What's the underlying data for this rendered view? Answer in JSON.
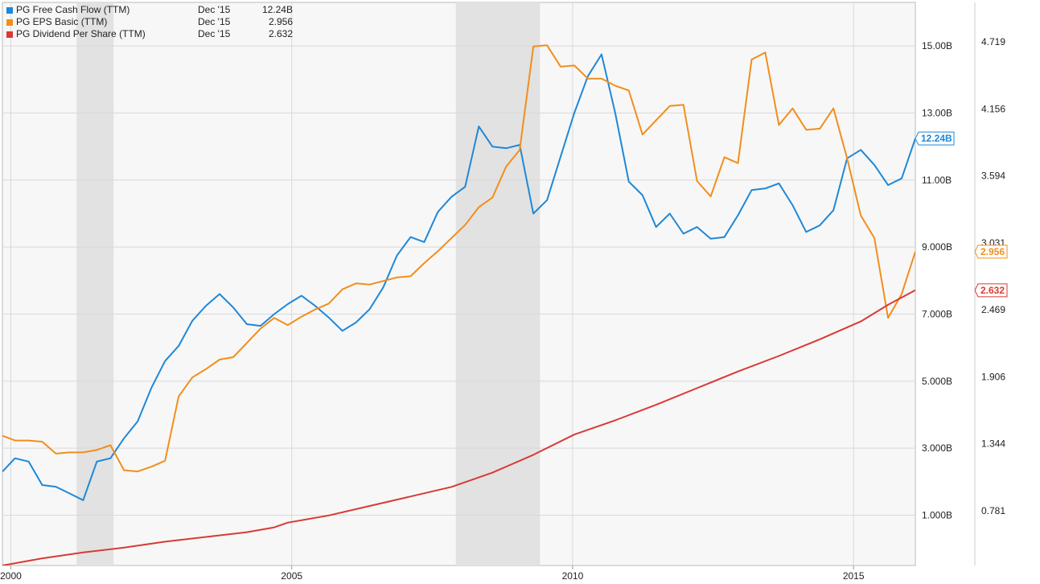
{
  "chart_data": {
    "type": "line",
    "legend": {
      "placement": "top-left",
      "rows": [
        {
          "series": "fcf",
          "name": "PG Free Cash Flow (TTM)",
          "date": "Dec '15",
          "value": "12.24B"
        },
        {
          "series": "eps",
          "name": "PG EPS Basic (TTM)",
          "date": "Dec '15",
          "value": "2.956"
        },
        {
          "series": "dps",
          "name": "PG Dividend Per Share (TTM)",
          "date": "Dec '15",
          "value": "2.632"
        }
      ]
    },
    "x_axis": {
      "range": [
        1999.85,
        2016.1
      ],
      "ticks": [
        {
          "value": 2000,
          "label": "2000"
        },
        {
          "value": 2005,
          "label": "2005"
        },
        {
          "value": 2010,
          "label": "2010"
        },
        {
          "value": 2015,
          "label": "2015"
        }
      ]
    },
    "left_axis": {
      "range": [
        -0.5,
        16.3
      ],
      "ticks": [
        {
          "value": 1,
          "label": "1.000B"
        },
        {
          "value": 3,
          "label": "3.000B"
        },
        {
          "value": 5,
          "label": "5.000B"
        },
        {
          "value": 7,
          "label": "7.000B"
        },
        {
          "value": 9,
          "label": "9.000B"
        },
        {
          "value": 11,
          "label": "11.00B"
        },
        {
          "value": 13,
          "label": "13.00B"
        },
        {
          "value": 15,
          "label": "15.00B"
        }
      ]
    },
    "right_axis": {
      "range": [
        0.32,
        5.05
      ],
      "ticks": [
        {
          "value": 0.781,
          "label": "0.781"
        },
        {
          "value": 1.344,
          "label": "1.344"
        },
        {
          "value": 1.906,
          "label": "1.906"
        },
        {
          "value": 2.469,
          "label": "2.469"
        },
        {
          "value": 3.031,
          "label": "3.031"
        },
        {
          "value": 3.594,
          "label": "3.594"
        },
        {
          "value": 4.156,
          "label": "4.156"
        },
        {
          "value": 4.719,
          "label": "4.719"
        }
      ]
    },
    "grid": true,
    "recession_shading": [
      [
        2001.17,
        2001.83
      ],
      [
        2007.92,
        2009.42
      ]
    ],
    "series": [
      {
        "id": "fcf",
        "name": "PG Free Cash Flow (TTM)",
        "axis": "left",
        "unit": "B",
        "color": "#1e88d8",
        "end_label": "12.24B",
        "points": [
          [
            1999.85,
            2.3
          ],
          [
            2000.08,
            2.7
          ],
          [
            2000.33,
            2.6
          ],
          [
            2000.58,
            1.9
          ],
          [
            2000.83,
            1.85
          ],
          [
            2001.08,
            1.65
          ],
          [
            2001.33,
            1.45
          ],
          [
            2001.58,
            2.6
          ],
          [
            2001.83,
            2.7
          ],
          [
            2002.08,
            3.3
          ],
          [
            2002.33,
            3.8
          ],
          [
            2002.58,
            4.8
          ],
          [
            2002.83,
            5.6
          ],
          [
            2003.08,
            6.05
          ],
          [
            2003.33,
            6.8
          ],
          [
            2003.58,
            7.25
          ],
          [
            2003.83,
            7.6
          ],
          [
            2004.08,
            7.2
          ],
          [
            2004.33,
            6.7
          ],
          [
            2004.58,
            6.65
          ],
          [
            2004.83,
            7.0
          ],
          [
            2005.08,
            7.3
          ],
          [
            2005.33,
            7.55
          ],
          [
            2005.58,
            7.25
          ],
          [
            2005.83,
            6.9
          ],
          [
            2006.08,
            6.5
          ],
          [
            2006.33,
            6.75
          ],
          [
            2006.58,
            7.15
          ],
          [
            2006.83,
            7.8
          ],
          [
            2007.08,
            8.75
          ],
          [
            2007.33,
            9.3
          ],
          [
            2007.58,
            9.15
          ],
          [
            2007.83,
            10.05
          ],
          [
            2008.08,
            10.5
          ],
          [
            2008.33,
            10.8
          ],
          [
            2008.58,
            12.6
          ],
          [
            2008.83,
            12.0
          ],
          [
            2009.08,
            11.95
          ],
          [
            2009.33,
            12.05
          ],
          [
            2009.58,
            10.0
          ],
          [
            2009.83,
            10.4
          ],
          [
            2010.08,
            11.7
          ],
          [
            2010.33,
            13.0
          ],
          [
            2010.58,
            14.1
          ],
          [
            2010.83,
            14.75
          ],
          [
            2011.08,
            13.0
          ],
          [
            2011.33,
            10.95
          ],
          [
            2011.58,
            10.55
          ],
          [
            2011.83,
            9.6
          ],
          [
            2012.08,
            10.0
          ],
          [
            2012.33,
            9.4
          ],
          [
            2012.58,
            9.6
          ],
          [
            2012.83,
            9.25
          ],
          [
            2013.08,
            9.3
          ],
          [
            2013.33,
            9.95
          ],
          [
            2013.58,
            10.7
          ],
          [
            2013.83,
            10.75
          ],
          [
            2014.08,
            10.9
          ],
          [
            2014.33,
            10.25
          ],
          [
            2014.58,
            9.45
          ],
          [
            2014.83,
            9.65
          ],
          [
            2015.08,
            10.1
          ],
          [
            2015.33,
            11.65
          ],
          [
            2015.58,
            11.9
          ],
          [
            2015.83,
            11.45
          ],
          [
            2016.08,
            10.85
          ],
          [
            2016.33,
            11.05
          ],
          [
            2016.58,
            12.24
          ]
        ]
      },
      {
        "id": "eps",
        "name": "PG EPS Basic (TTM)",
        "axis": "right",
        "unit": "",
        "color": "#f28e1c",
        "end_label": "2.956",
        "points": [
          [
            1999.85,
            1.41
          ],
          [
            2000.08,
            1.37
          ],
          [
            2000.33,
            1.37
          ],
          [
            2000.58,
            1.36
          ],
          [
            2000.83,
            1.26
          ],
          [
            2001.08,
            1.27
          ],
          [
            2001.33,
            1.27
          ],
          [
            2001.58,
            1.29
          ],
          [
            2001.83,
            1.33
          ],
          [
            2002.08,
            1.12
          ],
          [
            2002.33,
            1.11
          ],
          [
            2002.58,
            1.15
          ],
          [
            2002.83,
            1.2
          ],
          [
            2003.08,
            1.74
          ],
          [
            2003.33,
            1.9
          ],
          [
            2003.58,
            1.97
          ],
          [
            2003.83,
            2.05
          ],
          [
            2004.08,
            2.07
          ],
          [
            2004.33,
            2.19
          ],
          [
            2004.58,
            2.31
          ],
          [
            2004.83,
            2.4
          ],
          [
            2005.08,
            2.34
          ],
          [
            2005.33,
            2.41
          ],
          [
            2005.58,
            2.47
          ],
          [
            2005.83,
            2.52
          ],
          [
            2006.08,
            2.64
          ],
          [
            2006.33,
            2.69
          ],
          [
            2006.58,
            2.68
          ],
          [
            2006.83,
            2.71
          ],
          [
            2007.08,
            2.74
          ],
          [
            2007.33,
            2.75
          ],
          [
            2007.58,
            2.86
          ],
          [
            2007.83,
            2.96
          ],
          [
            2008.08,
            3.07
          ],
          [
            2008.33,
            3.18
          ],
          [
            2008.58,
            3.33
          ],
          [
            2008.83,
            3.41
          ],
          [
            2009.08,
            3.67
          ],
          [
            2009.33,
            3.81
          ],
          [
            2009.58,
            4.68
          ],
          [
            2009.83,
            4.69
          ],
          [
            2010.08,
            4.51
          ],
          [
            2010.33,
            4.52
          ],
          [
            2010.58,
            4.41
          ],
          [
            2010.83,
            4.41
          ],
          [
            2011.08,
            4.35
          ],
          [
            2011.33,
            4.31
          ],
          [
            2011.58,
            3.94
          ],
          [
            2011.83,
            4.06
          ],
          [
            2012.08,
            4.18
          ],
          [
            2012.33,
            4.19
          ],
          [
            2012.58,
            3.55
          ],
          [
            2012.83,
            3.42
          ],
          [
            2013.08,
            3.75
          ],
          [
            2013.33,
            3.7
          ],
          [
            2013.58,
            4.57
          ],
          [
            2013.83,
            4.63
          ],
          [
            2014.08,
            4.02
          ],
          [
            2014.33,
            4.16
          ],
          [
            2014.58,
            3.98
          ],
          [
            2014.83,
            3.99
          ],
          [
            2015.08,
            4.16
          ],
          [
            2015.33,
            3.74
          ],
          [
            2015.58,
            3.26
          ],
          [
            2015.83,
            3.07
          ],
          [
            2016.08,
            2.4
          ],
          [
            2016.33,
            2.6
          ],
          [
            2016.58,
            2.956
          ]
        ]
      },
      {
        "id": "dps",
        "name": "PG Dividend Per Share (TTM)",
        "axis": "right",
        "unit": "",
        "color": "#d93a35",
        "end_label": "2.632",
        "points": [
          [
            1999.85,
            0.32
          ],
          [
            2000.58,
            0.38
          ],
          [
            2001.33,
            0.43
          ],
          [
            2002.08,
            0.47
          ],
          [
            2002.83,
            0.52
          ],
          [
            2003.58,
            0.56
          ],
          [
            2004.33,
            0.6
          ],
          [
            2004.83,
            0.64
          ],
          [
            2005.08,
            0.68
          ],
          [
            2005.83,
            0.74
          ],
          [
            2006.58,
            0.82
          ],
          [
            2007.33,
            0.9
          ],
          [
            2008.08,
            0.98
          ],
          [
            2008.83,
            1.1
          ],
          [
            2009.58,
            1.25
          ],
          [
            2010.33,
            1.42
          ],
          [
            2011.08,
            1.54
          ],
          [
            2011.83,
            1.67
          ],
          [
            2012.58,
            1.81
          ],
          [
            2013.33,
            1.95
          ],
          [
            2014.08,
            2.08
          ],
          [
            2014.83,
            2.22
          ],
          [
            2015.58,
            2.37
          ],
          [
            2016.08,
            2.51
          ],
          [
            2016.58,
            2.632
          ]
        ]
      }
    ]
  }
}
